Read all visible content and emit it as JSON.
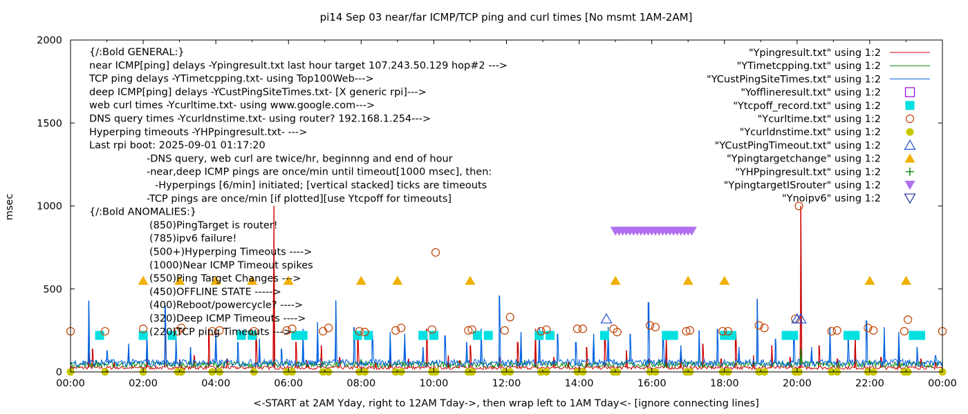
{
  "chart_data": {
    "type": "line",
    "title": "pi14 Sep 03  near/far ICMP/TCP ping and curl times [No msmt 1AM-2AM]",
    "xlabel": "<-START at 2AM Yday, right to 12AM Tday->, then wrap left to 1AM Tday<- [ignore connecting lines]",
    "ylabel": "msec",
    "xlim": [
      0,
      24
    ],
    "ylim": [
      0,
      2000
    ],
    "x_tick_labels": [
      "00:00",
      "02:00",
      "04:00",
      "06:00",
      "08:00",
      "10:00",
      "12:00",
      "14:00",
      "16:00",
      "18:00",
      "20:00",
      "22:00",
      "00:00"
    ],
    "y_tick_labels": [
      "0",
      "500",
      "1000",
      "1500",
      "2000"
    ],
    "grid": false,
    "legend_position": "top-right",
    "annotations": [
      "{/:Bold GENERAL:}",
      "near ICMP[ping] delays -Ypingresult.txt last hour target 107.243.50.129 hop#2 --->",
      "TCP ping delays -YTimetcpping.txt- using Top100Web--->",
      "deep ICMP[ping] delays -YCustPingSiteTimes.txt- [X generic rpi]--->",
      "web curl times -Ycurltime.txt- using www.google.com--->",
      "DNS query times -Ycurldnstime.txt- using router? 192.168.1.254--->",
      "Hyperping timeouts -YHPpingresult.txt- --->",
      "Last rpi boot: 2025-09-01 01:17:20",
      "-DNS query, web curl are twice/hr, beginnng and end of hour",
      "-near,deep ICMP pings are once/min until timeout[1000 msec], then:",
      "-Hyperpings [6/min] initiated; [vertical stacked] ticks are timeouts",
      "-TCP pings are once/min [if plotted][use Ytcpoff for timeouts]",
      "{/:Bold ANOMALIES:}",
      "(850)PingTarget is router!",
      "(785)ipv6 failure!",
      "(500+)Hyperping Timeouts ---->",
      "(1000)Near ICMP Timeout spikes",
      "(550)Ping Target Changes --->",
      "(450)OFFLINE STATE ----->",
      "(400)Reboot/powercycle? ---->",
      "(320)Deep ICMP Timeouts ---->",
      "(220)TCP ping Timeouts --->"
    ],
    "series": [
      {
        "name": "\"Ypingresult.txt\" using 1:2",
        "color": "#cc0000",
        "style": "line",
        "baseline": 25,
        "spikes": [
          [
            0.5,
            120
          ],
          [
            0.6,
            140
          ],
          [
            1.2,
            60
          ],
          [
            2.1,
            90
          ],
          [
            2.6,
            280
          ],
          [
            3.0,
            75
          ],
          [
            3.4,
            100
          ],
          [
            3.8,
            260
          ],
          [
            4.3,
            80
          ],
          [
            5.1,
            220
          ],
          [
            5.6,
            1000
          ],
          [
            6.2,
            180
          ],
          [
            6.5,
            70
          ],
          [
            6.9,
            160
          ],
          [
            7.4,
            90
          ],
          [
            7.9,
            200
          ],
          [
            8.4,
            60
          ],
          [
            8.8,
            180
          ],
          [
            9.3,
            80
          ],
          [
            9.8,
            260
          ],
          [
            10.4,
            100
          ],
          [
            10.7,
            70
          ],
          [
            11.0,
            160
          ],
          [
            11.8,
            90
          ],
          [
            12.3,
            180
          ],
          [
            12.8,
            260
          ],
          [
            13.3,
            90
          ],
          [
            13.7,
            60
          ],
          [
            14.2,
            150
          ],
          [
            14.7,
            240
          ],
          [
            15.3,
            130
          ],
          [
            15.9,
            80
          ],
          [
            16.4,
            220
          ],
          [
            16.8,
            90
          ],
          [
            17.4,
            170
          ],
          [
            17.9,
            80
          ],
          [
            18.3,
            230
          ],
          [
            18.8,
            100
          ],
          [
            19.3,
            160
          ],
          [
            19.8,
            90
          ],
          [
            20.1,
            1000
          ],
          [
            20.6,
            160
          ],
          [
            21.1,
            80
          ],
          [
            21.6,
            240
          ],
          [
            22.3,
            90
          ],
          [
            22.8,
            170
          ],
          [
            23.4,
            80
          ],
          [
            23.8,
            60
          ]
        ]
      },
      {
        "name": "\"YTimetcpping.txt\" using 1:2",
        "color": "#008800",
        "style": "line",
        "baseline": 45,
        "spikes": [
          [
            0.7,
            70
          ],
          [
            3.3,
            80
          ],
          [
            5.6,
            60
          ],
          [
            8.0,
            75
          ],
          [
            12.5,
            70
          ],
          [
            16.2,
            70
          ],
          [
            20.1,
            140
          ],
          [
            22.0,
            70
          ]
        ]
      },
      {
        "name": "\"YCustPingSiteTimes.txt\" using 1:2",
        "color": "#0060e0",
        "style": "line",
        "baseline": 55,
        "spikes": [
          [
            0.5,
            430
          ],
          [
            1.0,
            130
          ],
          [
            1.6,
            170
          ],
          [
            2.1,
            230
          ],
          [
            2.6,
            400
          ],
          [
            2.9,
            200
          ],
          [
            3.3,
            150
          ],
          [
            4.0,
            260
          ],
          [
            4.6,
            180
          ],
          [
            5.2,
            200
          ],
          [
            5.8,
            140
          ],
          [
            6.4,
            260
          ],
          [
            6.8,
            300
          ],
          [
            7.3,
            430
          ],
          [
            7.8,
            270
          ],
          [
            8.3,
            220
          ],
          [
            8.8,
            240
          ],
          [
            9.2,
            230
          ],
          [
            9.7,
            150
          ],
          [
            10.3,
            220
          ],
          [
            10.9,
            180
          ],
          [
            11.3,
            260
          ],
          [
            11.8,
            460
          ],
          [
            12.4,
            240
          ],
          [
            12.9,
            270
          ],
          [
            13.4,
            230
          ],
          [
            13.9,
            180
          ],
          [
            14.4,
            230
          ],
          [
            14.8,
            270
          ],
          [
            15.4,
            230
          ],
          [
            15.9,
            420
          ],
          [
            16.3,
            240
          ],
          [
            16.8,
            160
          ],
          [
            17.3,
            250
          ],
          [
            17.8,
            260
          ],
          [
            18.4,
            150
          ],
          [
            18.9,
            440
          ],
          [
            19.4,
            200
          ],
          [
            19.9,
            240
          ],
          [
            20.4,
            150
          ],
          [
            20.9,
            270
          ],
          [
            21.4,
            200
          ],
          [
            21.9,
            310
          ],
          [
            22.4,
            270
          ],
          [
            22.8,
            240
          ],
          [
            23.3,
            150
          ],
          [
            23.8,
            100
          ]
        ]
      },
      {
        "name": "\"Yofflineresult.txt\" using 1:2",
        "color": "#9400d3",
        "style": "open-square",
        "points": []
      },
      {
        "name": "\"Ytcpoff_record.txt\" using 1:2",
        "color": "#00e0e0",
        "style": "filled-square",
        "points": [
          [
            0.8,
            220
          ],
          [
            2.0,
            220
          ],
          [
            2.8,
            220
          ],
          [
            4.7,
            220
          ],
          [
            5.0,
            220
          ],
          [
            6.2,
            220
          ],
          [
            6.4,
            220
          ],
          [
            7.9,
            220
          ],
          [
            8.2,
            220
          ],
          [
            9.7,
            220
          ],
          [
            10.0,
            220
          ],
          [
            11.2,
            220
          ],
          [
            11.5,
            220
          ],
          [
            12.9,
            220
          ],
          [
            13.2,
            220
          ],
          [
            14.7,
            220
          ],
          [
            16.4,
            220
          ],
          [
            16.6,
            220
          ],
          [
            18.0,
            220
          ],
          [
            18.2,
            220
          ],
          [
            19.7,
            220
          ],
          [
            19.9,
            220
          ],
          [
            21.4,
            220
          ],
          [
            21.6,
            220
          ],
          [
            23.2,
            220
          ],
          [
            23.4,
            220
          ]
        ]
      },
      {
        "name": "\"Ycurltime.txt\" using 1:2",
        "color": "#c04000",
        "style": "open-circle",
        "points": [
          [
            0.0,
            245
          ],
          [
            0.95,
            245
          ],
          [
            2.0,
            260
          ],
          [
            2.95,
            245
          ],
          [
            3.05,
            265
          ],
          [
            3.9,
            245
          ],
          [
            4.1,
            250
          ],
          [
            5.05,
            245
          ],
          [
            5.95,
            250
          ],
          [
            6.1,
            260
          ],
          [
            6.95,
            245
          ],
          [
            7.1,
            265
          ],
          [
            7.95,
            245
          ],
          [
            8.1,
            240
          ],
          [
            8.95,
            250
          ],
          [
            9.1,
            265
          ],
          [
            9.95,
            255
          ],
          [
            10.05,
            720
          ],
          [
            10.95,
            250
          ],
          [
            11.05,
            255
          ],
          [
            11.95,
            250
          ],
          [
            12.1,
            330
          ],
          [
            12.95,
            245
          ],
          [
            13.1,
            255
          ],
          [
            13.95,
            260
          ],
          [
            14.1,
            260
          ],
          [
            14.95,
            260
          ],
          [
            15.05,
            240
          ],
          [
            15.95,
            280
          ],
          [
            16.1,
            270
          ],
          [
            16.95,
            245
          ],
          [
            17.05,
            250
          ],
          [
            17.95,
            245
          ],
          [
            18.1,
            245
          ],
          [
            18.95,
            280
          ],
          [
            19.1,
            265
          ],
          [
            19.95,
            320
          ],
          [
            20.05,
            1000
          ],
          [
            20.95,
            245
          ],
          [
            21.1,
            250
          ],
          [
            21.95,
            265
          ],
          [
            22.1,
            250
          ],
          [
            22.95,
            245
          ],
          [
            23.05,
            315
          ],
          [
            24.0,
            245
          ]
        ]
      },
      {
        "name": "\"Ycurldnstime.txt\" using 1:2",
        "color": "#c8c800",
        "style": "filled-circle",
        "points": [
          [
            0.0,
            0
          ],
          [
            0.95,
            0
          ],
          [
            2.0,
            0
          ],
          [
            2.95,
            0
          ],
          [
            3.05,
            0
          ],
          [
            3.9,
            0
          ],
          [
            4.1,
            0
          ],
          [
            5.05,
            0
          ],
          [
            5.95,
            0
          ],
          [
            6.1,
            0
          ],
          [
            6.95,
            0
          ],
          [
            7.1,
            0
          ],
          [
            7.95,
            0
          ],
          [
            8.1,
            0
          ],
          [
            8.95,
            0
          ],
          [
            9.1,
            0
          ],
          [
            9.95,
            0
          ],
          [
            10.05,
            0
          ],
          [
            10.95,
            0
          ],
          [
            11.05,
            0
          ],
          [
            11.95,
            0
          ],
          [
            12.1,
            0
          ],
          [
            12.95,
            0
          ],
          [
            13.1,
            0
          ],
          [
            13.95,
            0
          ],
          [
            14.1,
            0
          ],
          [
            14.95,
            0
          ],
          [
            15.05,
            0
          ],
          [
            15.95,
            0
          ],
          [
            16.1,
            0
          ],
          [
            16.95,
            0
          ],
          [
            17.05,
            0
          ],
          [
            17.95,
            0
          ],
          [
            18.1,
            0
          ],
          [
            18.95,
            0
          ],
          [
            19.1,
            0
          ],
          [
            19.95,
            0
          ],
          [
            20.05,
            0
          ],
          [
            20.95,
            0
          ],
          [
            21.1,
            0
          ],
          [
            21.95,
            0
          ],
          [
            22.1,
            0
          ],
          [
            22.95,
            0
          ],
          [
            23.05,
            0
          ],
          [
            24.0,
            0
          ]
        ]
      },
      {
        "name": "\"YCustPingTimeout.txt\" using 1:2",
        "color": "#2050d0",
        "style": "open-triangle-up",
        "points": [
          [
            14.75,
            320
          ],
          [
            20.0,
            320
          ],
          [
            20.1,
            320
          ]
        ]
      },
      {
        "name": "\"Ypingtargetchange\" using 1:2",
        "color": "#f0b000",
        "style": "filled-triangle-up",
        "points": [
          [
            2.0,
            550
          ],
          [
            3.0,
            550
          ],
          [
            4.0,
            550
          ],
          [
            5.0,
            550
          ],
          [
            6.0,
            550
          ],
          [
            8.0,
            550
          ],
          [
            9.0,
            550
          ],
          [
            11.0,
            550
          ],
          [
            15.0,
            550
          ],
          [
            17.0,
            550
          ],
          [
            18.0,
            550
          ],
          [
            22.0,
            550
          ],
          [
            23.0,
            550
          ]
        ]
      },
      {
        "name": "\"YHPpingresult.txt\" using 1:2",
        "color": "#008000",
        "style": "plus",
        "points": []
      },
      {
        "name": "\"YpingtargetISrouter\" using 1:2",
        "color": "#b070f0",
        "style": "filled-triangle-down",
        "points": [
          [
            15.0,
            850
          ],
          [
            15.1,
            850
          ],
          [
            15.2,
            850
          ],
          [
            15.3,
            850
          ],
          [
            15.4,
            850
          ],
          [
            15.5,
            850
          ],
          [
            15.6,
            850
          ],
          [
            15.7,
            850
          ],
          [
            15.8,
            850
          ],
          [
            15.9,
            850
          ],
          [
            16.0,
            850
          ],
          [
            16.1,
            850
          ],
          [
            16.2,
            850
          ],
          [
            16.3,
            850
          ],
          [
            16.4,
            850
          ],
          [
            16.5,
            850
          ],
          [
            16.6,
            850
          ],
          [
            16.7,
            850
          ],
          [
            16.8,
            850
          ],
          [
            16.9,
            850
          ],
          [
            17.0,
            850
          ],
          [
            17.1,
            850
          ]
        ]
      },
      {
        "name": "\"Ynoipv6\" using 1:2",
        "color": "#2030a0",
        "style": "open-triangle-down",
        "points": []
      }
    ]
  }
}
